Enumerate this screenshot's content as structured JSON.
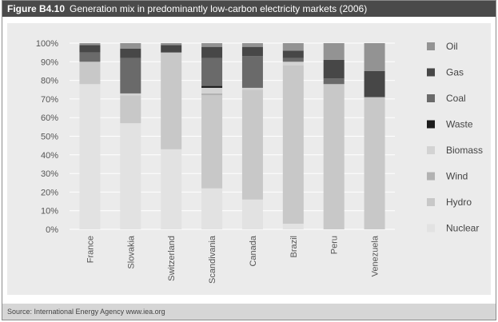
{
  "figure": {
    "label": "Figure B4.10",
    "title": "Generation mix in predominantly low-carbon electricity markets (2006)",
    "source": "Source: International Energy Agency www.iea.org"
  },
  "chart_data": {
    "type": "bar",
    "stacked": true,
    "categories": [
      "France",
      "Slovakia",
      "Switzerland",
      "Scandivania",
      "Canada",
      "Brazil",
      "Peru",
      "Venezuela"
    ],
    "y_ticks": [
      "0%",
      "10%",
      "20%",
      "30%",
      "40%",
      "50%",
      "60%",
      "70%",
      "80%",
      "90%",
      "100%"
    ],
    "ylim": [
      0,
      100
    ],
    "grid": true,
    "legend_position": "right",
    "series": [
      {
        "name": "Nuclear",
        "color": "#e2e2e2",
        "values": [
          78,
          57,
          43,
          22,
          16,
          3,
          0,
          0
        ]
      },
      {
        "name": "Hydro",
        "color": "#c8c8c8",
        "values": [
          12,
          15,
          52,
          50,
          59,
          85,
          78,
          71
        ]
      },
      {
        "name": "Wind",
        "color": "#b2b2b2",
        "values": [
          0,
          0,
          0,
          1,
          0,
          0,
          0,
          0
        ]
      },
      {
        "name": "Biomass",
        "color": "#d3d3d3",
        "values": [
          0,
          1,
          0,
          3,
          1,
          2,
          0,
          0
        ]
      },
      {
        "name": "Waste",
        "color": "#1c1c1c",
        "values": [
          0,
          0,
          0,
          1,
          0,
          0,
          0,
          0
        ]
      },
      {
        "name": "Coal",
        "color": "#6a6a6a",
        "values": [
          5,
          19,
          0,
          15,
          17,
          2,
          3,
          0
        ]
      },
      {
        "name": "Gas",
        "color": "#474747",
        "values": [
          4,
          5,
          4,
          6,
          5,
          4,
          10,
          14
        ]
      },
      {
        "name": "Oil",
        "color": "#939393",
        "values": [
          1,
          3,
          1,
          2,
          2,
          4,
          9,
          15
        ]
      }
    ]
  }
}
